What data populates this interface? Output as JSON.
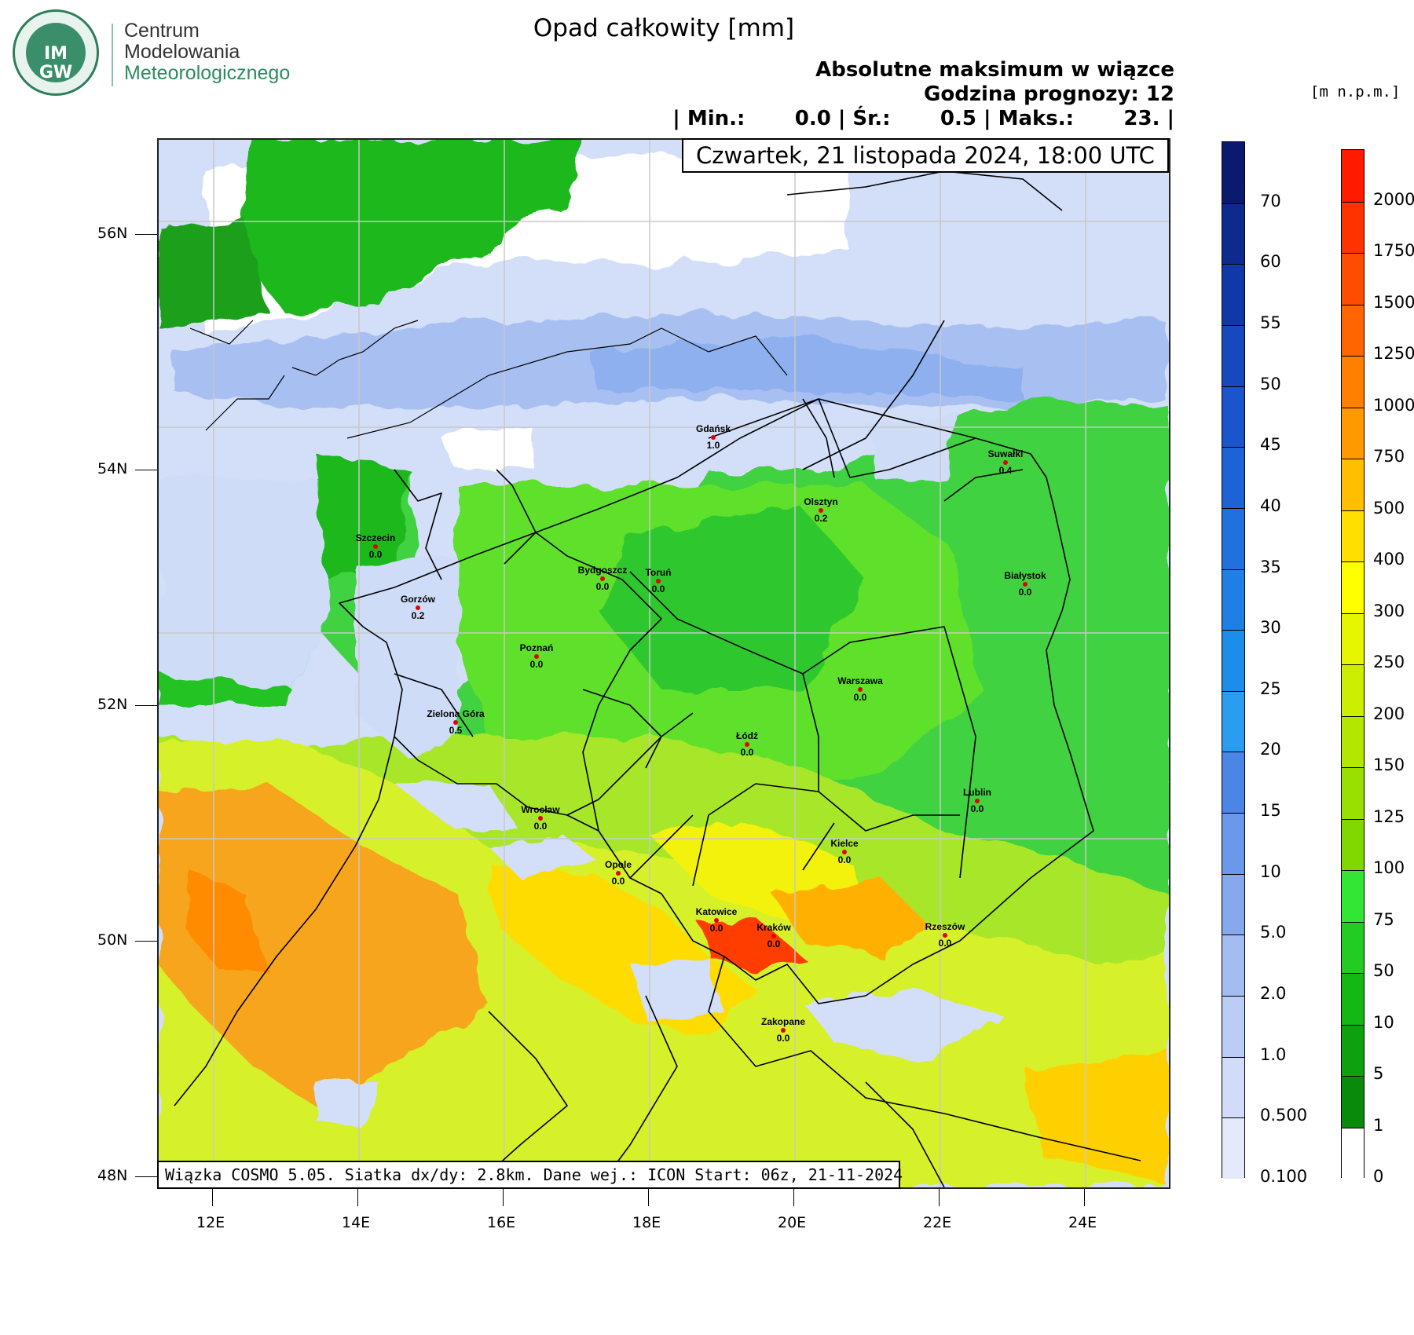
{
  "logo": {
    "mark_top": "IM",
    "mark_bottom": "GW",
    "line1": "Centrum",
    "line2": "Modelowania",
    "line3": "Meteorologicznego"
  },
  "title": "Opad całkowity [mm]",
  "subtitle_lines": [
    "Absolutne maksimum w wiązce",
    "Godzina prognozy: 12",
    "| Min.:       0.0 | Śr.:       0.5 | Maks.:       23. |"
  ],
  "stats": {
    "min": "0.0",
    "mean": "0.5",
    "max": "23."
  },
  "date_label": "Czwartek, 21 listopada 2024, 18:00 UTC",
  "units_label": "[m n.p.m.]",
  "footer": "Wiązka COSMO 5.05. Siatka dx/dy: 2.8km. Dane wej.: ICON Start: 06z, 21-11-2024",
  "axes": {
    "lat_ticks": [
      "56N",
      "54N",
      "52N",
      "50N",
      "48N"
    ],
    "lon_ticks": [
      "12E",
      "14E",
      "16E",
      "18E",
      "20E",
      "22E",
      "24E"
    ]
  },
  "precip_colorbar": {
    "labels": [
      "70",
      "60",
      "55",
      "50",
      "45",
      "40",
      "35",
      "30",
      "25",
      "20",
      "15",
      "10",
      "5.0",
      "2.0",
      "1.0",
      "0.500",
      "0.100"
    ],
    "colors": [
      "#0a1a6e",
      "#0d2b8c",
      "#1038a6",
      "#1748bd",
      "#1a55cc",
      "#1e63d6",
      "#2070de",
      "#1f7fe4",
      "#1d8dea",
      "#2a9df0",
      "#4b86e6",
      "#6a98ea",
      "#86a9ee",
      "#a3bcf2",
      "#bccdf5",
      "#d2dcf8",
      "#e4eafb"
    ]
  },
  "terrain_colorbar": {
    "labels": [
      "2000",
      "1750",
      "1500",
      "1250",
      "1000",
      "750",
      "500",
      "400",
      "300",
      "250",
      "200",
      "150",
      "125",
      "100",
      "75",
      "50",
      "10",
      "5",
      "1",
      "0"
    ],
    "colors": [
      "#ff1a00",
      "#ff3300",
      "#ff4d00",
      "#ff6600",
      "#ff7f00",
      "#ff9900",
      "#ffbf00",
      "#ffdf00",
      "#ffff00",
      "#e6f500",
      "#ccee00",
      "#b3e600",
      "#99df00",
      "#80d800",
      "#33e633",
      "#22cc22",
      "#14b814",
      "#0fa00f",
      "#0a8a0a",
      "#ffffff"
    ]
  },
  "cities": [
    {
      "name": "Gdańsk",
      "value": "1.0"
    },
    {
      "name": "Suwałki",
      "value": "0.4"
    },
    {
      "name": "Olsztyn",
      "value": "0.2"
    },
    {
      "name": "Szczecin",
      "value": "0.0"
    },
    {
      "name": "Bydgoszcz",
      "value": "0.0"
    },
    {
      "name": "Toruń",
      "value": "0.0"
    },
    {
      "name": "Białystok",
      "value": "0.0"
    },
    {
      "name": "Gorzów",
      "value": "0.2"
    },
    {
      "name": "Poznań",
      "value": "0.0"
    },
    {
      "name": "Warszawa",
      "value": "0.0"
    },
    {
      "name": "Zielona Góra",
      "value": "0.5"
    },
    {
      "name": "Łódź",
      "value": "0.0"
    },
    {
      "name": "Lublin",
      "value": "0.0"
    },
    {
      "name": "Wrocław",
      "value": "0.0"
    },
    {
      "name": "Kielce",
      "value": "0.0"
    },
    {
      "name": "Opole",
      "value": "0.0"
    },
    {
      "name": "Katowice",
      "value": "0.0"
    },
    {
      "name": "Kraków",
      "value": "0.0"
    },
    {
      "name": "Rzeszów",
      "value": "0.0"
    },
    {
      "name": "Zakopane",
      "value": "0.0"
    }
  ]
}
